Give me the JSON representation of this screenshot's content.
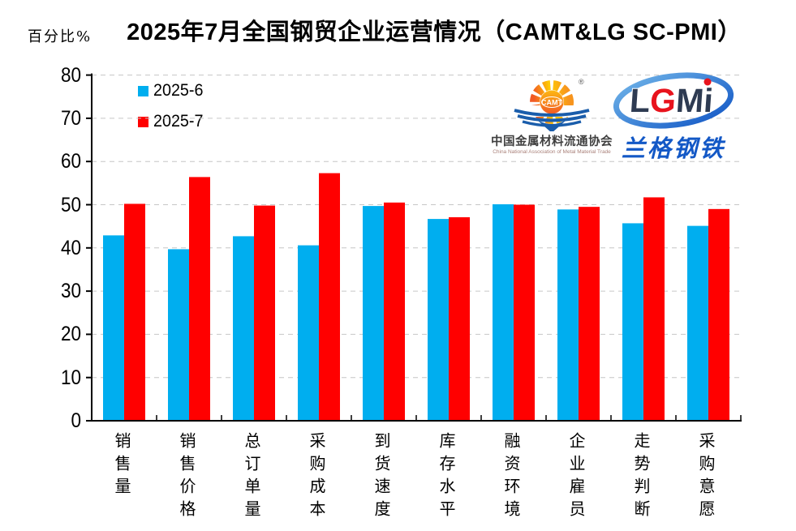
{
  "page": {
    "unit_label": "百分比%",
    "title": "2025年7月全国钢贸企业运营情况（CAMT&LG SC-PMI）"
  },
  "legend": {
    "items": [
      {
        "label": "2025-6",
        "color": "#00AEEF"
      },
      {
        "label": "2025-7",
        "color": "#FF0000"
      }
    ]
  },
  "logos": {
    "camt": {
      "acronym": "CAMT",
      "registered_mark": "®",
      "name_cn": "中国金属材料流通协会",
      "name_en": "China National Association of Metal Material Trade",
      "sun_colors": [
        "#f15a24",
        "#ffcb05",
        "#f7941d"
      ],
      "wave_color": "#1a5dab"
    },
    "lgmi": {
      "letters": [
        {
          "ch": "L",
          "color": "#2e3b52"
        },
        {
          "ch": "G",
          "color": "#e8131d"
        },
        {
          "ch": "M",
          "color": "#2e3b52"
        },
        {
          "ch": "i",
          "color": "#2e3b52"
        }
      ],
      "dot_color": "#e8131d",
      "ellipse_color": "#2e7bd0",
      "name_cn": "兰格钢铁"
    }
  },
  "chart_data": {
    "type": "bar",
    "title": "2025年7月全国钢贸企业运营情况（CAMT&LG SC-PMI）",
    "ylabel": "百分比%",
    "xlabel": "",
    "ylim": [
      0,
      80
    ],
    "yticks": [
      0,
      10,
      20,
      30,
      40,
      50,
      60,
      70,
      80
    ],
    "grid": "horizontal-dashed",
    "grid_color": "#c6c6c6",
    "axis_color": "#000000",
    "legend_position": "top-left-inside",
    "categories": [
      "销售量",
      "销售价格",
      "总订单量",
      "采购成本",
      "到货速度",
      "库存水平",
      "融资环境",
      "企业雇员",
      "走势判断",
      "采购意愿"
    ],
    "series": [
      {
        "name": "2025-6",
        "color": "#00AEEF",
        "values": [
          42.9,
          39.7,
          42.7,
          40.6,
          49.7,
          46.7,
          50.1,
          48.9,
          45.7,
          45.1
        ]
      },
      {
        "name": "2025-7",
        "color": "#FF0000",
        "values": [
          50.2,
          56.4,
          49.8,
          57.3,
          50.5,
          47.1,
          50.0,
          49.5,
          51.7,
          49.0
        ]
      }
    ]
  }
}
